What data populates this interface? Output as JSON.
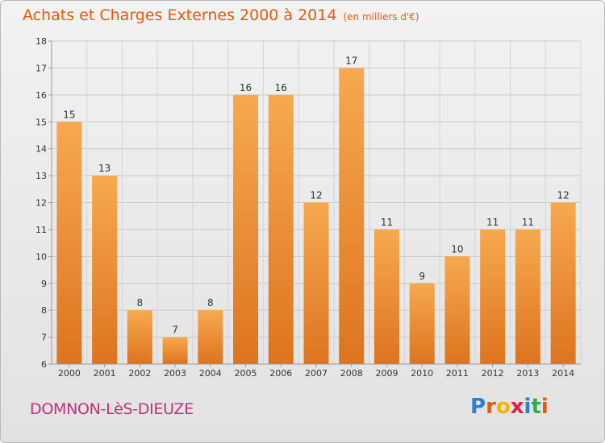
{
  "header": {
    "title": "Achats et Charges Externes 2000 à 2014",
    "unit": "(en milliers d'€)"
  },
  "footer": {
    "commune": "DOMNON-LèS-DIEUZE",
    "logo": "Proxiti"
  },
  "colors": {
    "accent": "#e8590c",
    "commune": "#c2307a",
    "bar_top": "#f7a94f",
    "bar_bottom": "#dd741f"
  },
  "chart_data": {
    "type": "bar",
    "categories": [
      "2000",
      "2001",
      "2002",
      "2003",
      "2004",
      "2005",
      "2006",
      "2007",
      "2008",
      "2009",
      "2010",
      "2011",
      "2012",
      "2013",
      "2014"
    ],
    "values": [
      15,
      13,
      8,
      7,
      8,
      16,
      16,
      12,
      17,
      11,
      9,
      10,
      11,
      11,
      12
    ],
    "title": "Achats et Charges Externes 2000 à 2014",
    "xlabel": "",
    "ylabel": "",
    "ylim": [
      6,
      18
    ],
    "yticks": [
      6,
      7,
      8,
      9,
      10,
      11,
      12,
      13,
      14,
      15,
      16,
      17,
      18
    ],
    "grid": true,
    "data_labels": true
  }
}
